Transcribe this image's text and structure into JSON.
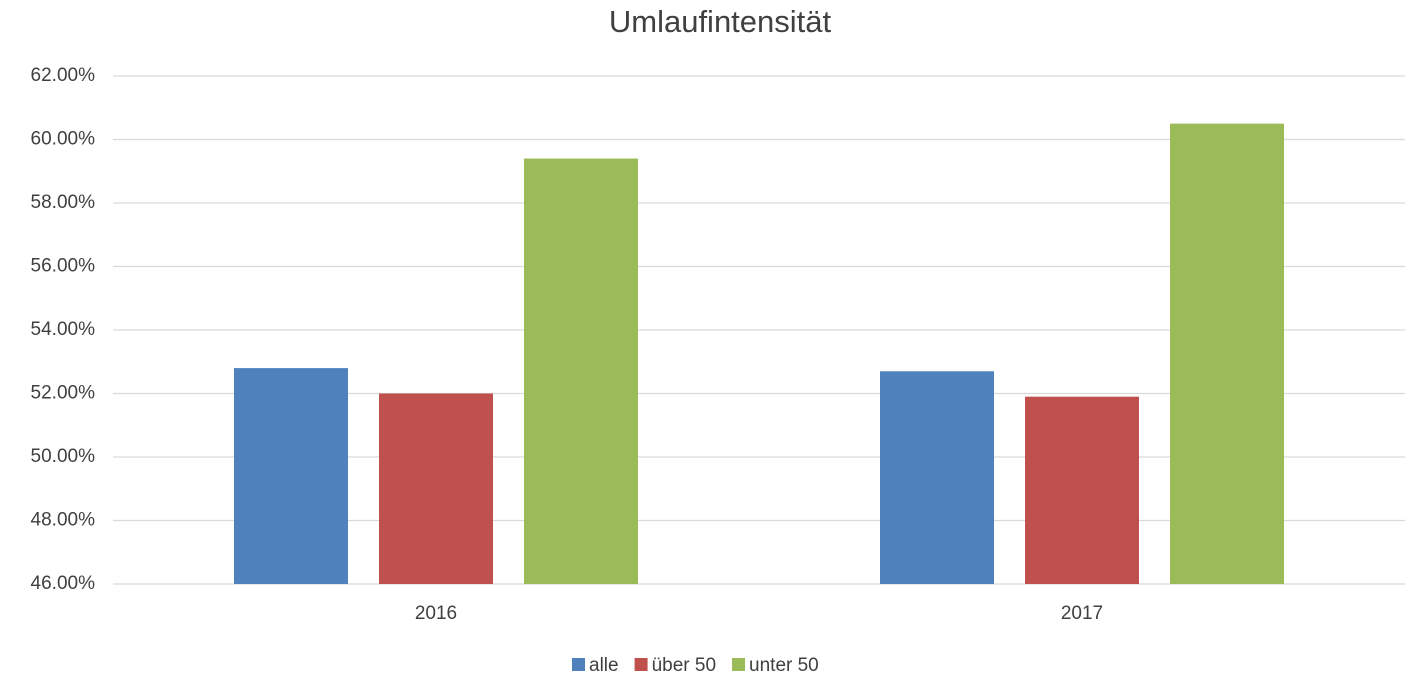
{
  "chart_data": {
    "type": "bar",
    "title": "Umlaufintensität",
    "categories": [
      "2016",
      "2017"
    ],
    "series": [
      {
        "name": "alle",
        "color": "#4f81bd",
        "values": [
          52.8,
          52.7
        ]
      },
      {
        "name": "über 50",
        "color": "#c0504d",
        "values": [
          52.0,
          51.9
        ]
      },
      {
        "name": "unter 50",
        "color": "#9bbb59",
        "values": [
          59.4,
          60.5
        ]
      }
    ],
    "ylim": [
      46,
      62
    ],
    "yticks": [
      {
        "value": 46,
        "label": "46.00%"
      },
      {
        "value": 48,
        "label": "48.00%"
      },
      {
        "value": 50,
        "label": "50.00%"
      },
      {
        "value": 52,
        "label": "52.00%"
      },
      {
        "value": 54,
        "label": "54.00%"
      },
      {
        "value": 56,
        "label": "56.00%"
      },
      {
        "value": 58,
        "label": "58.00%"
      },
      {
        "value": 60,
        "label": "60.00%"
      },
      {
        "value": 62,
        "label": "62.00%"
      }
    ],
    "grid": true,
    "legend": "bottom"
  }
}
